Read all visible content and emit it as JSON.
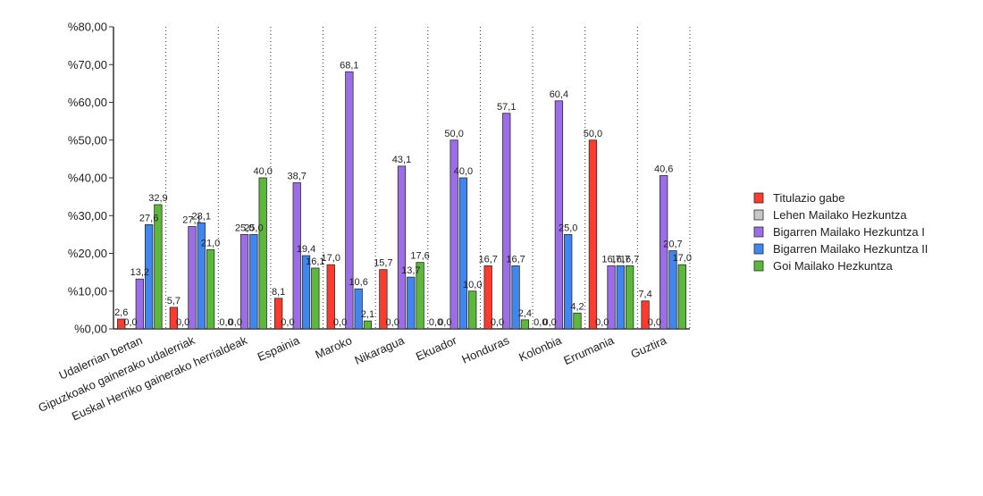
{
  "chart_data": {
    "type": "bar",
    "title": "",
    "xlabel": "",
    "ylabel": "",
    "ylim": [
      0,
      80
    ],
    "yticks": [
      0,
      10,
      20,
      30,
      40,
      50,
      60,
      70,
      80
    ],
    "ytick_labels": [
      "%0,00",
      "%10,00",
      "%20,00",
      "%30,00",
      "%40,00",
      "%50,00",
      "%60,00",
      "%70,00",
      "%80,00"
    ],
    "grid": "vertical dotted lines between categories",
    "legend_position": "right",
    "categories": [
      "Udalerrian bertan",
      "Gipuzkoako gainerako udalerriak",
      "Euskal Herriko gainerako herrialdeak",
      "Espainia",
      "Maroko",
      "Nikaragua",
      "Ekuador",
      "Honduras",
      "Kolonbia",
      "Errumania",
      "Guztira"
    ],
    "series": [
      {
        "name": "Titulazio gabe",
        "color": "#ff3b2f",
        "values": [
          2.6,
          5.7,
          0.0,
          8.1,
          17.0,
          15.7,
          0.0,
          16.7,
          0.0,
          50.0,
          7.4
        ],
        "labels": [
          "2,6",
          "5,7",
          "0,0",
          "8,1",
          "17,0",
          "15,7",
          "0,0",
          "16,7",
          "0,0",
          "50,0",
          "7,4"
        ]
      },
      {
        "name": "Lehen Mailako Hezkuntza",
        "color": "#c8c8c8",
        "values": [
          0.0,
          0.0,
          0.0,
          0.0,
          0.0,
          0.0,
          0.0,
          0.0,
          0.0,
          0.0,
          0.0
        ],
        "labels": [
          "0,0",
          "0,0",
          "0,0",
          "0,0",
          "0,0",
          "0,0",
          "0,0",
          "0,0",
          "0,0",
          "0,0",
          "0,0"
        ]
      },
      {
        "name": "Bigarren Mailako Hezkuntza I",
        "color": "#9b6ee8",
        "values": [
          13.2,
          27.1,
          25.0,
          38.7,
          68.1,
          43.1,
          50.0,
          57.1,
          60.4,
          16.7,
          40.6
        ],
        "labels": [
          "13,2",
          "27,1",
          "25,0",
          "38,7",
          "68,1",
          "43,1",
          "50,0",
          "57,1",
          "60,4",
          "16,7",
          "40,6"
        ]
      },
      {
        "name": "Bigarren Mailako Hezkuntza II",
        "color": "#3f86f0",
        "values": [
          27.6,
          28.1,
          25.0,
          19.4,
          10.6,
          13.7,
          40.0,
          16.7,
          25.0,
          16.7,
          20.7
        ],
        "labels": [
          "27,6",
          "28,1",
          "25,0",
          "19,4",
          "10,6",
          "13,7",
          "40,0",
          "16,7",
          "25,0",
          "16,7",
          "20,7"
        ]
      },
      {
        "name": "Goi Mailako Hezkuntza",
        "color": "#5cb83a",
        "values": [
          32.9,
          21.0,
          40.0,
          16.1,
          2.1,
          17.6,
          10.0,
          2.4,
          4.2,
          16.7,
          17.0
        ],
        "labels": [
          "32,9",
          "21,0",
          "40,0",
          "16,1",
          "2,1",
          "17,6",
          "10,0",
          "2,4",
          "4,2",
          "16,7",
          "17,0"
        ]
      }
    ]
  }
}
